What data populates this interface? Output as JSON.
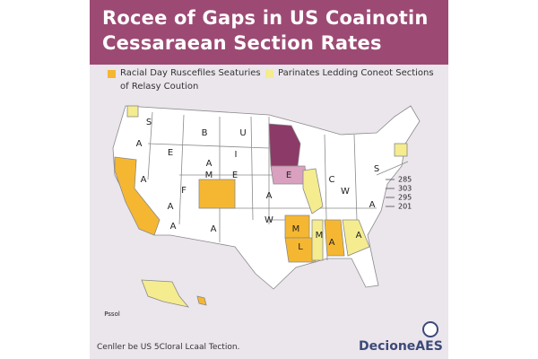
{
  "header": {
    "title_lines": [
      "Rocee of Gaps in US Coainotin",
      "Cessaraean Section Rates"
    ]
  },
  "legend": [
    {
      "label": "Racial Day Ruscefiles Seaturies",
      "color": "#f5b731"
    },
    {
      "label": "Parinates Ledding Coneot Sections",
      "color": "#f4ec8f"
    }
  ],
  "legend_note": "of Relasy Coution",
  "map": {
    "labels": [
      "S",
      "B",
      "U",
      "A",
      "E",
      "I",
      "A",
      "M",
      "E",
      "A",
      "F",
      "A",
      "M",
      "L",
      "A",
      "W",
      "A",
      "A",
      "E",
      "C",
      "W",
      "M",
      "A",
      "A",
      "S",
      "A"
    ],
    "inset_label": "Pssol"
  },
  "scale": [
    "285",
    "303",
    "295",
    "201"
  ],
  "footer": {
    "source": "Cenller be US 5Cloral Lcaal Tection.",
    "brand": "DecioneAES"
  }
}
